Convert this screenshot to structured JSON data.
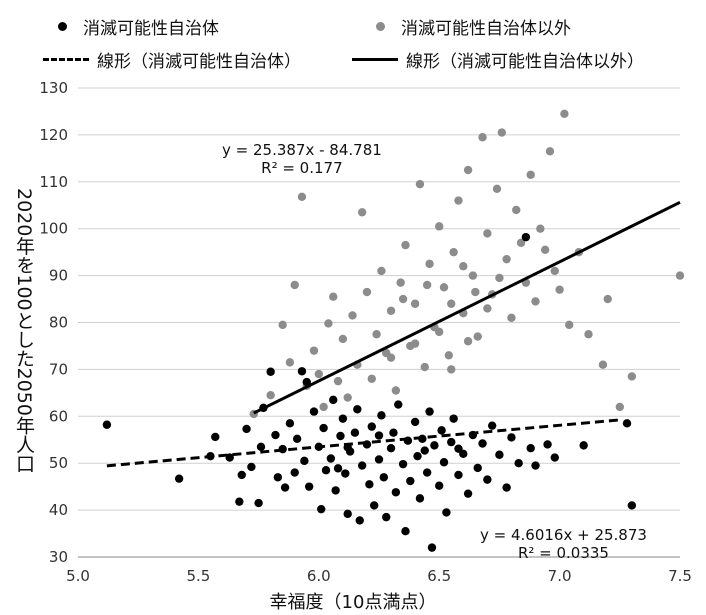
{
  "chart_data": {
    "type": "scatter",
    "xlabel": "幸福度（10点満点）",
    "ylabel": "2020年を100とした2050年人口",
    "xlim": [
      5.0,
      7.5
    ],
    "ylim": [
      30,
      130
    ],
    "xticks": [
      "5.0",
      "5.5",
      "6.0",
      "6.5",
      "7.0",
      "7.5"
    ],
    "yticks": [
      "30",
      "40",
      "50",
      "60",
      "70",
      "80",
      "90",
      "100",
      "110",
      "120",
      "130"
    ],
    "grid": "horizontal",
    "legend_position": "top",
    "series": [
      {
        "name": "消滅可能性自治体",
        "color": "#000000",
        "marker": "circle",
        "points": [
          [
            5.12,
            58.2
          ],
          [
            5.42,
            46.7
          ],
          [
            5.55,
            51.5
          ],
          [
            5.57,
            55.6
          ],
          [
            5.63,
            51.2
          ],
          [
            5.67,
            41.8
          ],
          [
            5.68,
            47.5
          ],
          [
            5.7,
            57.3
          ],
          [
            5.72,
            49.2
          ],
          [
            5.75,
            41.5
          ],
          [
            5.76,
            53.5
          ],
          [
            5.77,
            61.8
          ],
          [
            5.8,
            69.5
          ],
          [
            5.82,
            56.0
          ],
          [
            5.83,
            47.0
          ],
          [
            5.85,
            53.0
          ],
          [
            5.86,
            44.8
          ],
          [
            5.88,
            58.5
          ],
          [
            5.9,
            48.0
          ],
          [
            5.91,
            55.2
          ],
          [
            5.93,
            69.6
          ],
          [
            5.94,
            50.5
          ],
          [
            5.95,
            67.3
          ],
          [
            5.96,
            45.0
          ],
          [
            5.98,
            61.0
          ],
          [
            6.0,
            53.5
          ],
          [
            6.01,
            40.2
          ],
          [
            6.02,
            57.5
          ],
          [
            6.03,
            48.5
          ],
          [
            6.05,
            51.0
          ],
          [
            6.06,
            63.5
          ],
          [
            6.07,
            44.2
          ],
          [
            6.09,
            55.8
          ],
          [
            6.1,
            59.5
          ],
          [
            6.11,
            47.8
          ],
          [
            6.12,
            39.2
          ],
          [
            6.13,
            52.5
          ],
          [
            6.15,
            56.5
          ],
          [
            6.16,
            61.5
          ],
          [
            6.17,
            37.8
          ],
          [
            6.18,
            49.5
          ],
          [
            6.2,
            54.0
          ],
          [
            6.21,
            45.5
          ],
          [
            6.22,
            57.8
          ],
          [
            6.23,
            41.0
          ],
          [
            6.25,
            50.8
          ],
          [
            6.26,
            60.2
          ],
          [
            6.27,
            47.0
          ],
          [
            6.28,
            38.5
          ],
          [
            6.3,
            53.2
          ],
          [
            6.31,
            56.5
          ],
          [
            6.32,
            43.8
          ],
          [
            6.33,
            62.5
          ],
          [
            6.35,
            49.8
          ],
          [
            6.36,
            35.5
          ],
          [
            6.37,
            54.8
          ],
          [
            6.38,
            46.2
          ],
          [
            6.4,
            58.8
          ],
          [
            6.41,
            51.5
          ],
          [
            6.42,
            42.5
          ],
          [
            6.43,
            55.2
          ],
          [
            6.45,
            48.0
          ],
          [
            6.46,
            61.0
          ],
          [
            6.47,
            32.0
          ],
          [
            6.48,
            53.8
          ],
          [
            6.5,
            45.2
          ],
          [
            6.51,
            57.0
          ],
          [
            6.52,
            50.2
          ],
          [
            6.53,
            39.5
          ],
          [
            6.55,
            54.5
          ],
          [
            6.56,
            59.5
          ],
          [
            6.58,
            47.5
          ],
          [
            6.6,
            52.0
          ],
          [
            6.62,
            43.5
          ],
          [
            6.64,
            56.0
          ],
          [
            6.66,
            49.0
          ],
          [
            6.68,
            54.2
          ],
          [
            6.7,
            46.5
          ],
          [
            6.72,
            58.0
          ],
          [
            6.75,
            51.8
          ],
          [
            6.78,
            44.8
          ],
          [
            6.8,
            55.5
          ],
          [
            6.83,
            50.0
          ],
          [
            6.86,
            98.2
          ],
          [
            6.88,
            53.2
          ],
          [
            6.9,
            49.5
          ],
          [
            6.95,
            54.0
          ],
          [
            6.98,
            51.2
          ],
          [
            7.1,
            53.8
          ],
          [
            7.3,
            41.0
          ],
          [
            7.28,
            58.5
          ],
          [
            6.12,
            53.4
          ],
          [
            6.25,
            55.9
          ],
          [
            6.44,
            52.7
          ],
          [
            6.58,
            53.1
          ],
          [
            6.08,
            48.9
          ]
        ],
        "trendline": {
          "name": "線形（消滅可能性自治体）",
          "style": "dashed",
          "slope": 4.6016,
          "intercept": 25.873,
          "x_range": [
            5.12,
            7.25
          ],
          "equation": "y = 4.6016x + 25.873",
          "r2": "R² = 0.0335"
        }
      },
      {
        "name": "消滅可能性自治体以外",
        "color": "#8c8c8c",
        "marker": "circle",
        "points": [
          [
            5.73,
            60.5
          ],
          [
            5.8,
            64.5
          ],
          [
            5.85,
            79.5
          ],
          [
            5.88,
            71.5
          ],
          [
            5.9,
            88.0
          ],
          [
            5.93,
            106.8
          ],
          [
            5.95,
            66.5
          ],
          [
            5.98,
            74.0
          ],
          [
            6.0,
            69.0
          ],
          [
            6.02,
            62.0
          ],
          [
            6.04,
            79.8
          ],
          [
            6.06,
            85.5
          ],
          [
            6.08,
            67.5
          ],
          [
            6.1,
            76.5
          ],
          [
            6.12,
            64.0
          ],
          [
            6.14,
            81.5
          ],
          [
            6.16,
            71.0
          ],
          [
            6.18,
            103.5
          ],
          [
            6.2,
            86.5
          ],
          [
            6.22,
            68.0
          ],
          [
            6.24,
            77.5
          ],
          [
            6.26,
            91.0
          ],
          [
            6.28,
            73.5
          ],
          [
            6.3,
            82.5
          ],
          [
            6.32,
            65.5
          ],
          [
            6.34,
            88.5
          ],
          [
            6.36,
            96.5
          ],
          [
            6.38,
            75.0
          ],
          [
            6.4,
            84.0
          ],
          [
            6.42,
            109.5
          ],
          [
            6.44,
            70.5
          ],
          [
            6.46,
            92.5
          ],
          [
            6.48,
            79.0
          ],
          [
            6.5,
            100.5
          ],
          [
            6.52,
            87.5
          ],
          [
            6.54,
            73.0
          ],
          [
            6.56,
            95.0
          ],
          [
            6.58,
            106.0
          ],
          [
            6.6,
            82.0
          ],
          [
            6.62,
            112.5
          ],
          [
            6.64,
            90.0
          ],
          [
            6.66,
            77.0
          ],
          [
            6.68,
            119.5
          ],
          [
            6.7,
            99.0
          ],
          [
            6.72,
            86.0
          ],
          [
            6.74,
            108.5
          ],
          [
            6.76,
            120.5
          ],
          [
            6.78,
            93.5
          ],
          [
            6.8,
            81.0
          ],
          [
            6.82,
            104.0
          ],
          [
            6.84,
            97.0
          ],
          [
            6.86,
            88.5
          ],
          [
            6.88,
            111.5
          ],
          [
            6.9,
            84.5
          ],
          [
            6.92,
            100.0
          ],
          [
            6.94,
            95.5
          ],
          [
            6.96,
            116.5
          ],
          [
            6.98,
            91.0
          ],
          [
            7.0,
            87.0
          ],
          [
            7.02,
            124.5
          ],
          [
            7.04,
            79.5
          ],
          [
            7.08,
            95.0
          ],
          [
            7.12,
            77.5
          ],
          [
            7.18,
            71.0
          ],
          [
            7.2,
            85.0
          ],
          [
            7.25,
            62.0
          ],
          [
            7.3,
            68.5
          ],
          [
            7.5,
            90.0
          ],
          [
            6.35,
            85.0
          ],
          [
            6.45,
            88.0
          ],
          [
            6.55,
            84.0
          ],
          [
            6.65,
            86.5
          ],
          [
            6.75,
            89.5
          ],
          [
            6.5,
            78.0
          ],
          [
            6.6,
            92.0
          ],
          [
            6.7,
            83.0
          ],
          [
            6.4,
            75.5
          ],
          [
            6.55,
            70.0
          ],
          [
            6.3,
            72.5
          ],
          [
            6.62,
            76.0
          ]
        ],
        "trendline": {
          "name": "線形（消滅可能性自治体以外）",
          "style": "solid",
          "slope": 25.387,
          "intercept": -84.781,
          "x_range": [
            5.73,
            7.5
          ],
          "equation": "y = 25.387x - 84.781",
          "r2": "R² = 0.177"
        }
      }
    ]
  }
}
